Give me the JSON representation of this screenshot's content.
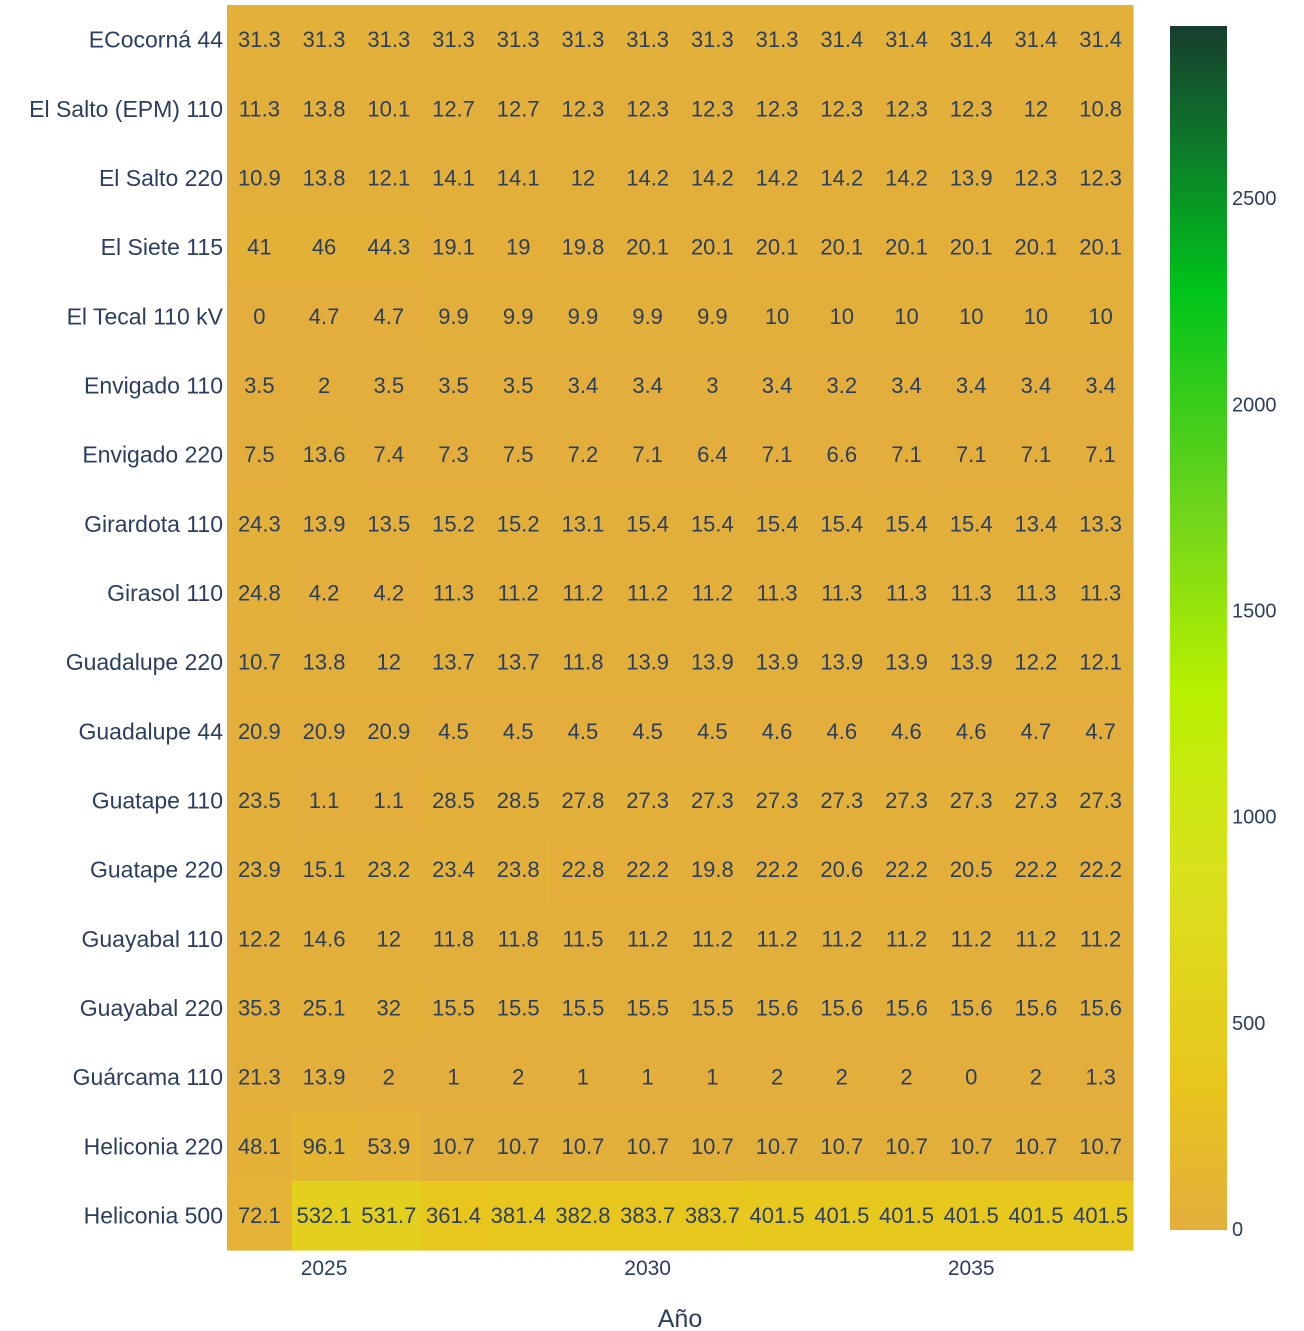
{
  "chart_data": {
    "type": "heatmap",
    "title": "",
    "xlabel": "Año",
    "ylabel": "",
    "x": [
      2024,
      2025,
      2026,
      2027,
      2028,
      2029,
      2030,
      2031,
      2032,
      2033,
      2034,
      2035,
      2036,
      2037
    ],
    "x_tick_labels": [
      "2025",
      "2030",
      "2035"
    ],
    "x_tick_values": [
      2025,
      2030,
      2035
    ],
    "rows": [
      "ECocorná 44",
      "El Salto (EPM) 110",
      "El Salto 220",
      "El Siete 115",
      "El Tecal 110 kV",
      "Envigado 110",
      "Envigado 220",
      "Girardota 110",
      "Girasol 110",
      "Guadalupe 220",
      "Guadalupe 44",
      "Guatape 110",
      "Guatape 220",
      "Guayabal 110",
      "Guayabal 220",
      "Guárcama 110",
      "Heliconia 220",
      "Heliconia 500"
    ],
    "z": [
      [
        31.3,
        31.3,
        31.3,
        31.3,
        31.3,
        31.3,
        31.3,
        31.3,
        31.3,
        31.4,
        31.4,
        31.4,
        31.4,
        31.4
      ],
      [
        11.3,
        13.8,
        10.1,
        12.7,
        12.7,
        12.3,
        12.3,
        12.3,
        12.3,
        12.3,
        12.3,
        12.3,
        12,
        10.8
      ],
      [
        10.9,
        13.8,
        12.1,
        14.1,
        14.1,
        12,
        14.2,
        14.2,
        14.2,
        14.2,
        14.2,
        13.9,
        12.3,
        12.3
      ],
      [
        41,
        46,
        44.3,
        19.1,
        19,
        19.8,
        20.1,
        20.1,
        20.1,
        20.1,
        20.1,
        20.1,
        20.1,
        20.1
      ],
      [
        0,
        4.7,
        4.7,
        9.9,
        9.9,
        9.9,
        9.9,
        9.9,
        10,
        10,
        10,
        10,
        10,
        10
      ],
      [
        3.5,
        2,
        3.5,
        3.5,
        3.5,
        3.4,
        3.4,
        3,
        3.4,
        3.2,
        3.4,
        3.4,
        3.4,
        3.4
      ],
      [
        7.5,
        13.6,
        7.4,
        7.3,
        7.5,
        7.2,
        7.1,
        6.4,
        7.1,
        6.6,
        7.1,
        7.1,
        7.1,
        7.1
      ],
      [
        24.3,
        13.9,
        13.5,
        15.2,
        15.2,
        13.1,
        15.4,
        15.4,
        15.4,
        15.4,
        15.4,
        15.4,
        13.4,
        13.3
      ],
      [
        24.8,
        4.2,
        4.2,
        11.3,
        11.2,
        11.2,
        11.2,
        11.2,
        11.3,
        11.3,
        11.3,
        11.3,
        11.3,
        11.3
      ],
      [
        10.7,
        13.8,
        12,
        13.7,
        13.7,
        11.8,
        13.9,
        13.9,
        13.9,
        13.9,
        13.9,
        13.9,
        12.2,
        12.1
      ],
      [
        20.9,
        20.9,
        20.9,
        4.5,
        4.5,
        4.5,
        4.5,
        4.5,
        4.6,
        4.6,
        4.6,
        4.6,
        4.7,
        4.7
      ],
      [
        23.5,
        1.1,
        1.1,
        28.5,
        28.5,
        27.8,
        27.3,
        27.3,
        27.3,
        27.3,
        27.3,
        27.3,
        27.3,
        27.3
      ],
      [
        23.9,
        15.1,
        23.2,
        23.4,
        23.8,
        22.8,
        22.2,
        19.8,
        22.2,
        20.6,
        22.2,
        20.5,
        22.2,
        22.2
      ],
      [
        12.2,
        14.6,
        12,
        11.8,
        11.8,
        11.5,
        11.2,
        11.2,
        11.2,
        11.2,
        11.2,
        11.2,
        11.2,
        11.2
      ],
      [
        35.3,
        25.1,
        32,
        15.5,
        15.5,
        15.5,
        15.5,
        15.5,
        15.6,
        15.6,
        15.6,
        15.6,
        15.6,
        15.6
      ],
      [
        21.3,
        13.9,
        2,
        1,
        2,
        1,
        1,
        1,
        2,
        2,
        2,
        0,
        2,
        1.3
      ],
      [
        48.1,
        96.1,
        53.9,
        10.7,
        10.7,
        10.7,
        10.7,
        10.7,
        10.7,
        10.7,
        10.7,
        10.7,
        10.7,
        10.7
      ],
      [
        72.1,
        532.1,
        531.7,
        361.4,
        381.4,
        382.8,
        383.7,
        383.7,
        401.5,
        401.5,
        401.5,
        401.5,
        401.5,
        401.5
      ]
    ],
    "zrange": [
      0,
      2920
    ],
    "colorscale": [
      [
        0,
        "#e3ae3c"
      ],
      [
        0.12,
        "#e8c51d"
      ],
      [
        0.3,
        "#d9e21c"
      ],
      [
        0.45,
        "#b7f000"
      ],
      [
        0.6,
        "#6ed41b"
      ],
      [
        0.78,
        "#00c41a"
      ],
      [
        0.9,
        "#0d7a2a"
      ],
      [
        1,
        "#173d2f"
      ]
    ],
    "colorbar_ticks": [
      0,
      500,
      1000,
      1500,
      2000,
      2500
    ],
    "cell_text_color": "#2a3f5f",
    "grid": false,
    "legend": "colorbar-right"
  }
}
